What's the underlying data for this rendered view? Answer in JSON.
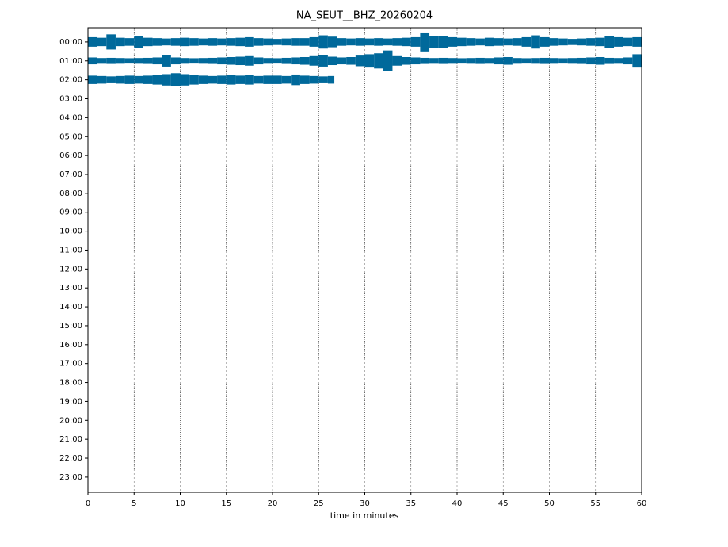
{
  "chart_data": {
    "type": "helicorder",
    "title": "NA_SEUT__BHZ_20260204",
    "xlabel": "time in minutes",
    "xlim": [
      0,
      60
    ],
    "xticks": [
      0,
      5,
      10,
      15,
      20,
      25,
      30,
      35,
      40,
      45,
      50,
      55,
      60
    ],
    "ylim": [
      -0.75,
      23.8
    ],
    "inverted_y": true,
    "yticks": [
      {
        "value": 0,
        "label": "00:00"
      },
      {
        "value": 1,
        "label": "01:00"
      },
      {
        "value": 2,
        "label": "02:00"
      },
      {
        "value": 3,
        "label": "03:00"
      },
      {
        "value": 4,
        "label": "04:00"
      },
      {
        "value": 5,
        "label": "05:00"
      },
      {
        "value": 6,
        "label": "06:00"
      },
      {
        "value": 7,
        "label": "07:00"
      },
      {
        "value": 8,
        "label": "08:00"
      },
      {
        "value": 9,
        "label": "09:00"
      },
      {
        "value": 10,
        "label": "10:00"
      },
      {
        "value": 11,
        "label": "11:00"
      },
      {
        "value": 12,
        "label": "12:00"
      },
      {
        "value": 13,
        "label": "13:00"
      },
      {
        "value": 14,
        "label": "14:00"
      },
      {
        "value": 15,
        "label": "15:00"
      },
      {
        "value": 16,
        "label": "16:00"
      },
      {
        "value": 17,
        "label": "17:00"
      },
      {
        "value": 18,
        "label": "18:00"
      },
      {
        "value": 19,
        "label": "19:00"
      },
      {
        "value": 20,
        "label": "20:00"
      },
      {
        "value": 21,
        "label": "21:00"
      },
      {
        "value": 22,
        "label": "22:00"
      },
      {
        "value": 23,
        "label": "23:00"
      }
    ],
    "grid": true,
    "color": "#00699b",
    "series": [
      {
        "hour": 0,
        "x": [
          0,
          1,
          2,
          3,
          4,
          5,
          6,
          7,
          8,
          9,
          10,
          11,
          12,
          13,
          14,
          15,
          16,
          17,
          18,
          19,
          20,
          21,
          22,
          23,
          24,
          25,
          26,
          27,
          28,
          29,
          30,
          31,
          32,
          33,
          34,
          35,
          36,
          37,
          38,
          39,
          40,
          41,
          42,
          43,
          44,
          45,
          46,
          47,
          48,
          49,
          50,
          51,
          52,
          53,
          54,
          55,
          56,
          57,
          58,
          59
        ],
        "values": [
          0.25,
          0.22,
          0.4,
          0.22,
          0.2,
          0.3,
          0.22,
          0.2,
          0.18,
          0.2,
          0.22,
          0.2,
          0.18,
          0.2,
          0.18,
          0.2,
          0.22,
          0.25,
          0.2,
          0.18,
          0.16,
          0.18,
          0.2,
          0.2,
          0.25,
          0.35,
          0.28,
          0.2,
          0.18,
          0.2,
          0.18,
          0.2,
          0.18,
          0.2,
          0.22,
          0.25,
          0.5,
          0.3,
          0.3,
          0.25,
          0.22,
          0.2,
          0.18,
          0.22,
          0.2,
          0.18,
          0.2,
          0.25,
          0.35,
          0.25,
          0.2,
          0.18,
          0.16,
          0.18,
          0.2,
          0.22,
          0.3,
          0.25,
          0.22,
          0.25
        ]
      },
      {
        "hour": 1,
        "x": [
          0,
          1,
          2,
          3,
          4,
          5,
          6,
          7,
          8,
          9,
          10,
          11,
          12,
          13,
          14,
          15,
          16,
          17,
          18,
          19,
          20,
          21,
          22,
          23,
          24,
          25,
          26,
          27,
          28,
          29,
          30,
          31,
          32,
          33,
          34,
          35,
          36,
          37,
          38,
          39,
          40,
          41,
          42,
          43,
          44,
          45,
          46,
          47,
          48,
          49,
          50,
          51,
          52,
          53,
          54,
          55,
          56,
          57,
          58,
          59
        ],
        "values": [
          0.18,
          0.15,
          0.16,
          0.15,
          0.14,
          0.15,
          0.16,
          0.18,
          0.3,
          0.18,
          0.15,
          0.14,
          0.15,
          0.16,
          0.18,
          0.2,
          0.22,
          0.25,
          0.18,
          0.15,
          0.14,
          0.16,
          0.18,
          0.2,
          0.25,
          0.3,
          0.22,
          0.18,
          0.2,
          0.28,
          0.35,
          0.4,
          0.55,
          0.25,
          0.2,
          0.18,
          0.16,
          0.15,
          0.16,
          0.15,
          0.14,
          0.15,
          0.16,
          0.15,
          0.18,
          0.2,
          0.15,
          0.14,
          0.15,
          0.16,
          0.15,
          0.14,
          0.15,
          0.16,
          0.18,
          0.2,
          0.16,
          0.15,
          0.18,
          0.35
        ]
      },
      {
        "hour": 2,
        "x": [
          0,
          1,
          2,
          3,
          4,
          5,
          6,
          7,
          8,
          9,
          10,
          11,
          12,
          13,
          14,
          15,
          16,
          17,
          18,
          19,
          20,
          21,
          22,
          23,
          24,
          25,
          26
        ],
        "values": [
          0.22,
          0.2,
          0.18,
          0.2,
          0.22,
          0.2,
          0.22,
          0.25,
          0.3,
          0.35,
          0.3,
          0.25,
          0.22,
          0.2,
          0.22,
          0.25,
          0.22,
          0.25,
          0.2,
          0.22,
          0.22,
          0.2,
          0.28,
          0.22,
          0.2,
          0.18,
          0.2
        ]
      }
    ]
  }
}
